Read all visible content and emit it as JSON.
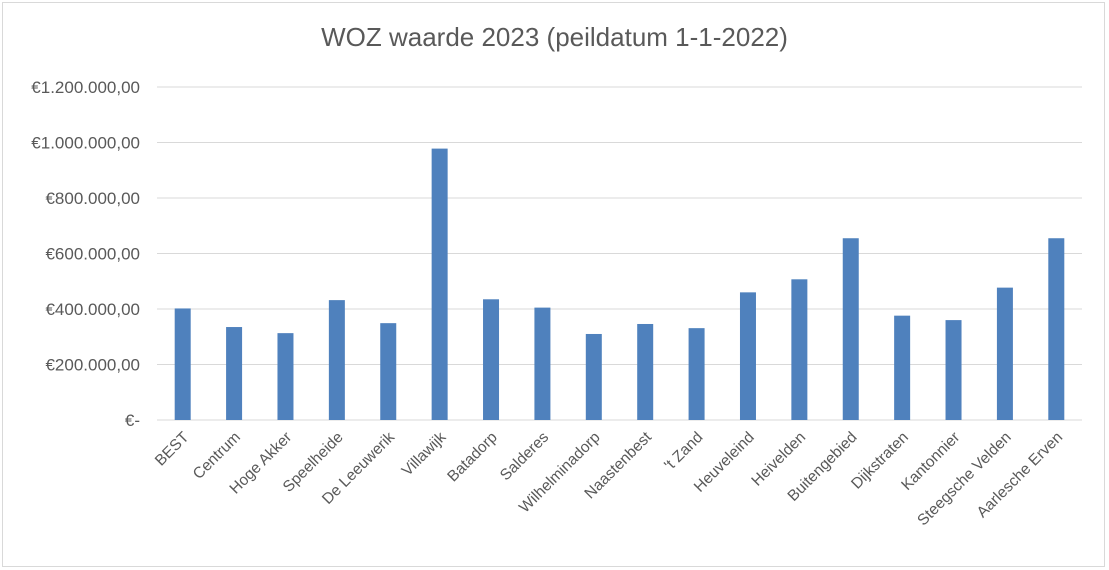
{
  "chart_data": {
    "type": "bar",
    "title": "WOZ waarde 2023 (peildatum 1-1-2022)",
    "xlabel": "",
    "ylabel": "",
    "ylim": [
      0,
      1200000
    ],
    "yticks": [
      {
        "value": 0,
        "label": "€-"
      },
      {
        "value": 200000,
        "label": "€200.000,00"
      },
      {
        "value": 400000,
        "label": "€400.000,00"
      },
      {
        "value": 600000,
        "label": "€600.000,00"
      },
      {
        "value": 800000,
        "label": "€800.000,00"
      },
      {
        "value": 1000000,
        "label": "€1.000.000,00"
      },
      {
        "value": 1200000,
        "label": "€1.200.000,00"
      }
    ],
    "grid": true,
    "legend": "none",
    "bar_color": "#4f81bd",
    "categories": [
      "BEST",
      "Centrum",
      "Hoge Akker",
      "Speelheide",
      "De Leeuwerik",
      "Villawijk",
      "Batadorp",
      "Salderes",
      "Wilhelminadorp",
      "Naastenbest",
      "'t Zand",
      "Heuveleind",
      "Heivelden",
      "Buitengebied",
      "Dijkstraten",
      "Kantonnier",
      "Steegsche Velden",
      "Aarlesche Erven"
    ],
    "values": [
      402000,
      335000,
      313000,
      432000,
      349000,
      978000,
      435000,
      405000,
      310000,
      346000,
      331000,
      460000,
      507000,
      655000,
      376000,
      360000,
      477000,
      655000
    ]
  }
}
